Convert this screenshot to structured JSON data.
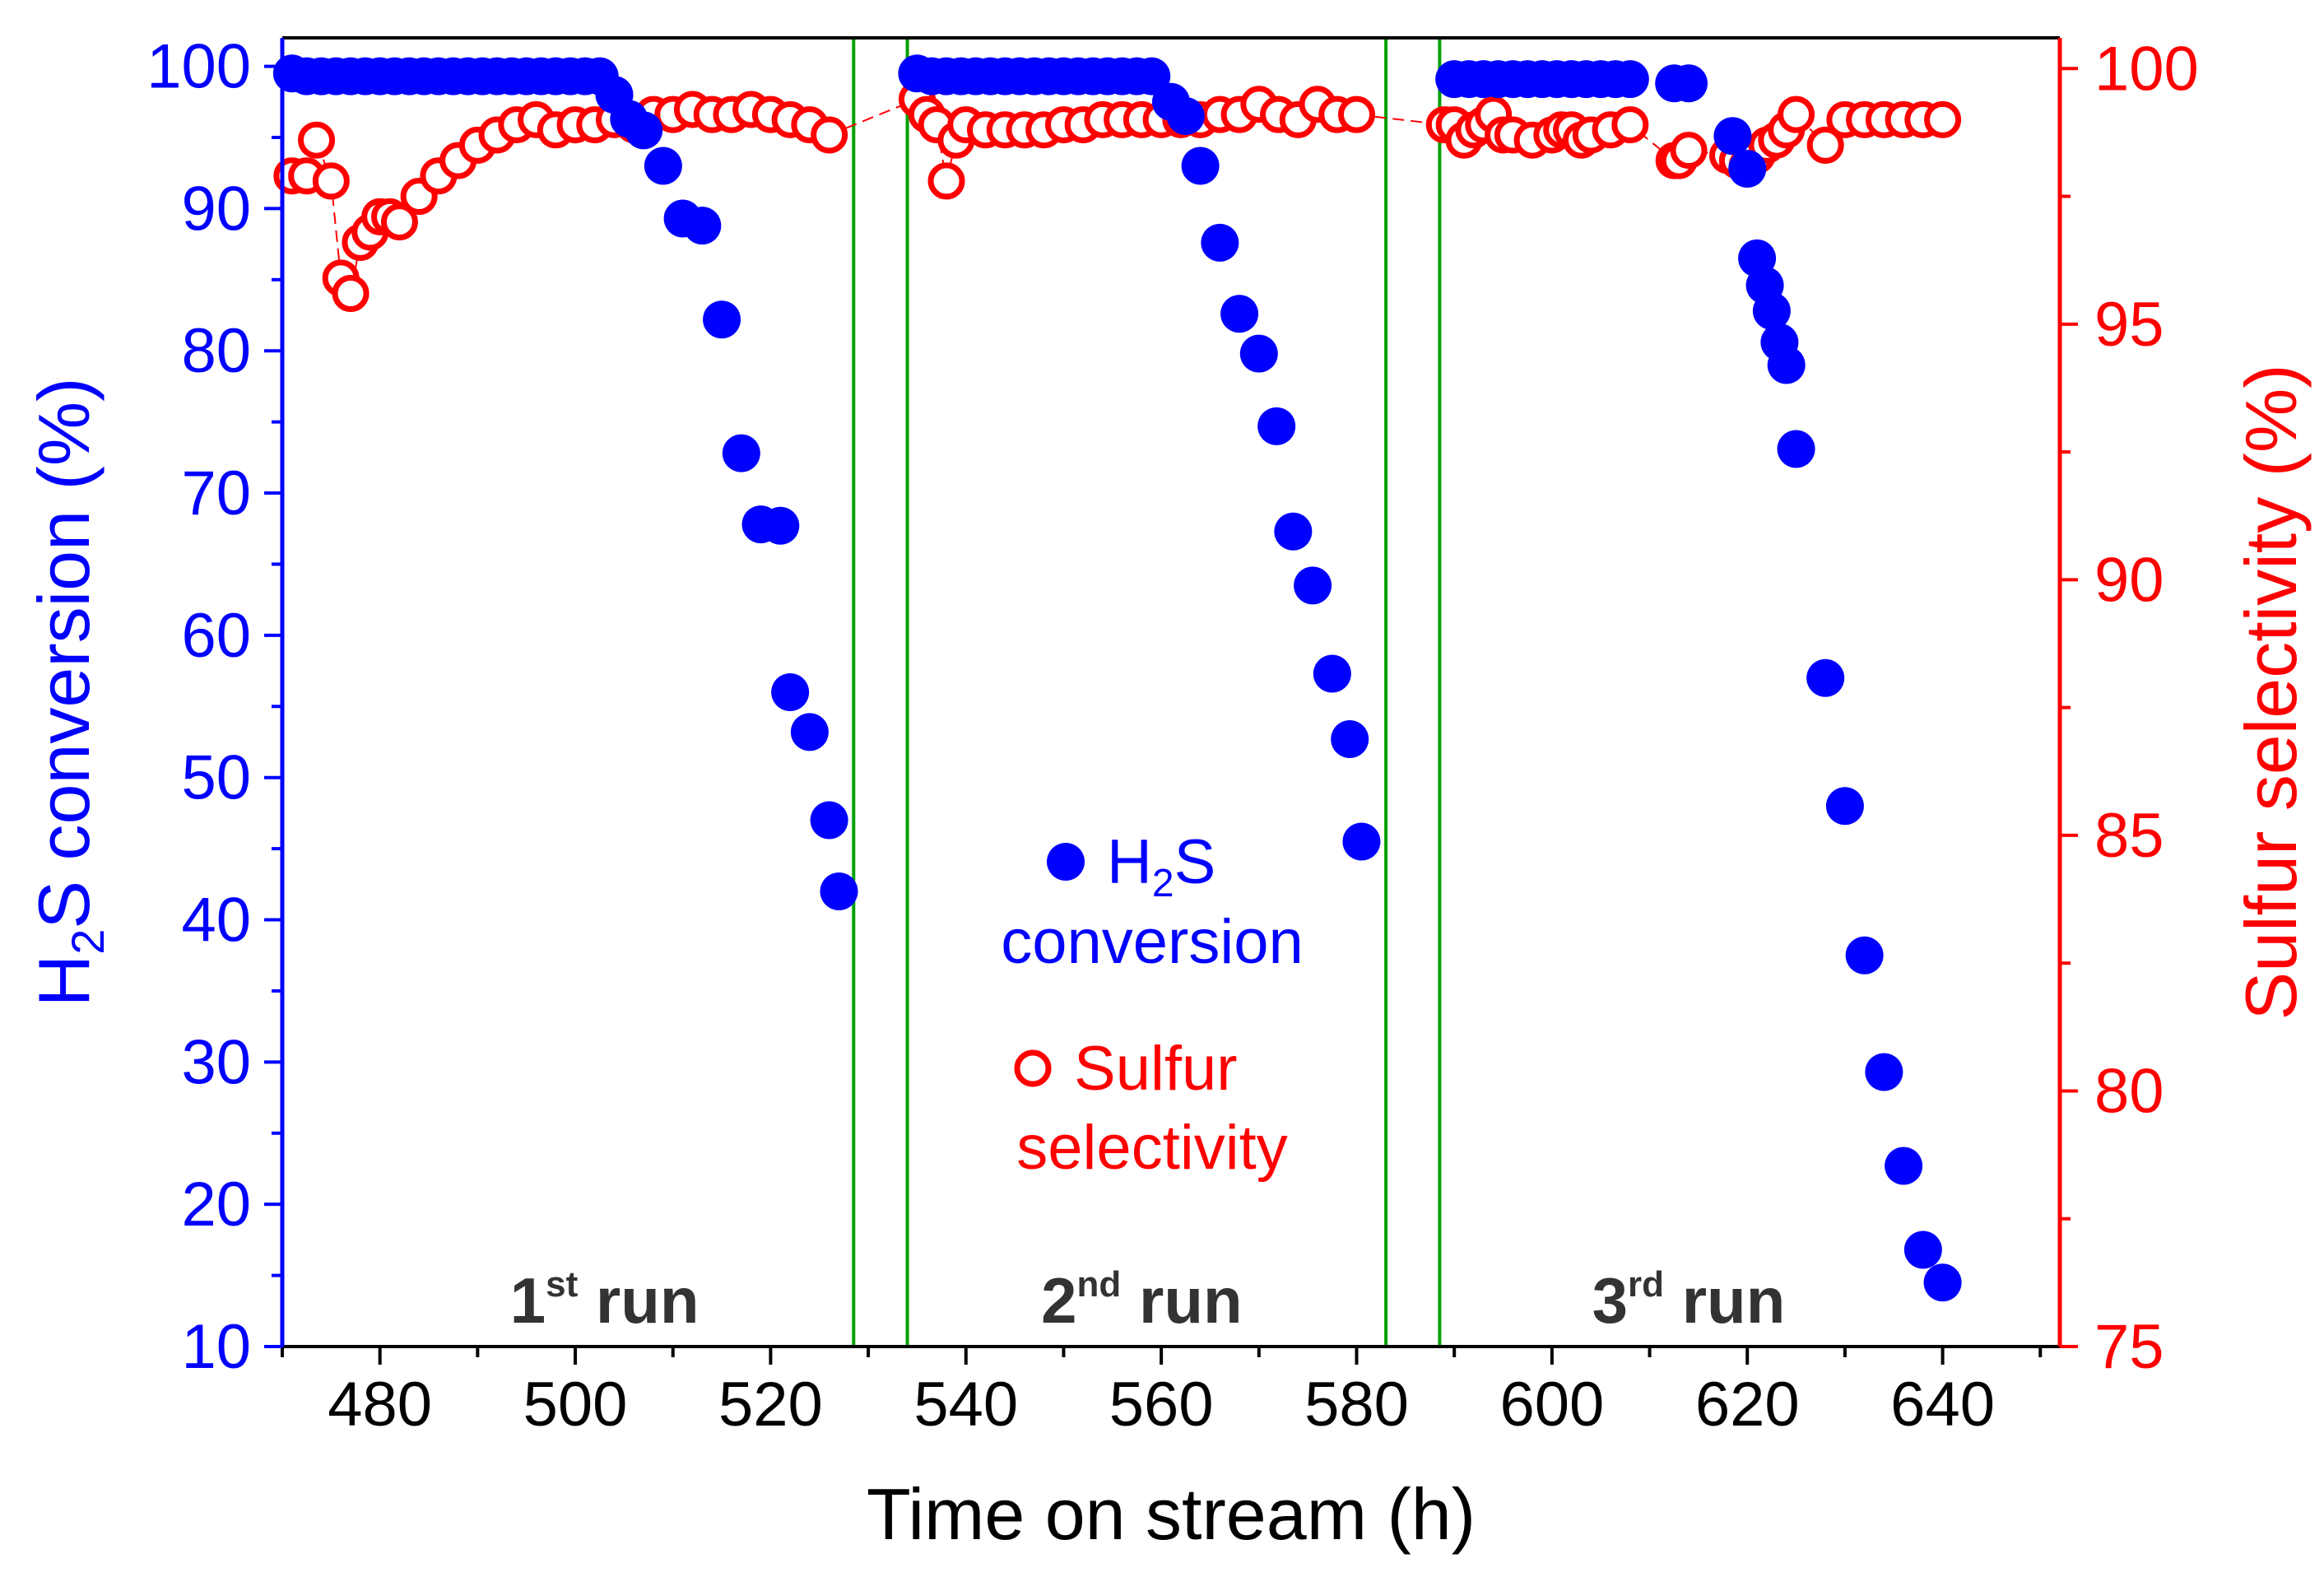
{
  "chart_data": {
    "type": "scatter",
    "xlabel": "Time on stream (h)",
    "ylabel_left": {
      "main": "H",
      "sub": "2",
      "rest": "S conversion (%)"
    },
    "ylabel_right": "Sulfur selectivity (%)",
    "xlim": [
      470,
      652
    ],
    "xticks": [
      480,
      500,
      520,
      540,
      560,
      580,
      600,
      620,
      640
    ],
    "ylim_left": [
      10,
      102
    ],
    "yticks_left": [
      10,
      20,
      30,
      40,
      50,
      60,
      70,
      80,
      90,
      100
    ],
    "ylim_right": [
      75,
      100.6
    ],
    "yticks_right": [
      75,
      80,
      85,
      90,
      95,
      100
    ],
    "grid": false,
    "colors": {
      "conversion": "#0000ff",
      "selectivity": "#ff0000",
      "run_divider": "#00a000"
    },
    "run_dividers_x": [
      528.5,
      534,
      583,
      588.5
    ],
    "run_labels": [
      {
        "num": "1",
        "sup": "st",
        "word": "run",
        "x": 503
      },
      {
        "num": "2",
        "sup": "nd",
        "word": "run",
        "x": 558
      },
      {
        "num": "3",
        "sup": "rd",
        "word": "run",
        "x": 614
      }
    ],
    "legend": {
      "placement": "center",
      "conversion": {
        "pre": "H",
        "sub": "2",
        "post": "S",
        "line2": "conversion"
      },
      "selectivity": {
        "line1": "Sulfur",
        "line2": "selectivity"
      }
    },
    "series": [
      {
        "name": "H2S conversion",
        "axis": "left",
        "marker": "filled-circle",
        "points": [
          [
            471,
            99.5
          ],
          [
            472.5,
            99.3
          ],
          [
            474,
            99.3
          ],
          [
            475.5,
            99.3
          ],
          [
            477,
            99.3
          ],
          [
            478.5,
            99.3
          ],
          [
            480,
            99.3
          ],
          [
            481.5,
            99.3
          ],
          [
            483,
            99.3
          ],
          [
            484.5,
            99.3
          ],
          [
            486,
            99.3
          ],
          [
            487.5,
            99.3
          ],
          [
            489,
            99.3
          ],
          [
            490.5,
            99.3
          ],
          [
            492,
            99.3
          ],
          [
            493.5,
            99.3
          ],
          [
            495,
            99.3
          ],
          [
            496.5,
            99.3
          ],
          [
            498,
            99.3
          ],
          [
            499.5,
            99.3
          ],
          [
            501,
            99.3
          ],
          [
            502.5,
            99.3
          ],
          [
            504,
            98
          ],
          [
            505.5,
            96.3
          ],
          [
            507,
            95.5
          ],
          [
            509,
            93
          ],
          [
            511,
            89.3
          ],
          [
            513,
            88.8
          ],
          [
            515,
            82.2
          ],
          [
            517,
            72.8
          ],
          [
            519,
            67.8
          ],
          [
            521,
            67.7
          ],
          [
            522,
            56
          ],
          [
            524,
            53.2
          ],
          [
            526,
            47
          ],
          [
            527,
            42
          ],
          [
            535,
            99.5
          ],
          [
            536.5,
            99.3
          ],
          [
            538,
            99.3
          ],
          [
            539.5,
            99.3
          ],
          [
            541,
            99.3
          ],
          [
            542.5,
            99.3
          ],
          [
            544,
            99.3
          ],
          [
            545.5,
            99.3
          ],
          [
            547,
            99.3
          ],
          [
            548.5,
            99.3
          ],
          [
            550,
            99.3
          ],
          [
            551.5,
            99.3
          ],
          [
            553,
            99.3
          ],
          [
            554.5,
            99.3
          ],
          [
            556,
            99.3
          ],
          [
            557.5,
            99.3
          ],
          [
            559,
            99.3
          ],
          [
            561,
            97.5
          ],
          [
            562.5,
            96.5
          ],
          [
            564,
            93
          ],
          [
            566,
            87.6
          ],
          [
            568,
            82.6
          ],
          [
            570,
            79.8
          ],
          [
            571.8,
            74.7
          ],
          [
            573.5,
            67.3
          ],
          [
            575.5,
            63.5
          ],
          [
            577.5,
            57.3
          ],
          [
            579.3,
            52.7
          ],
          [
            580.5,
            45.5
          ],
          [
            590,
            99.1
          ],
          [
            591.5,
            99.1
          ],
          [
            593,
            99.1
          ],
          [
            594.5,
            99.1
          ],
          [
            596,
            99.1
          ],
          [
            597.5,
            99.1
          ],
          [
            599,
            99.1
          ],
          [
            600.5,
            99.1
          ],
          [
            602,
            99.1
          ],
          [
            603.5,
            99.1
          ],
          [
            605,
            99.1
          ],
          [
            606.5,
            99.1
          ],
          [
            608,
            99.1
          ],
          [
            612.5,
            98.8
          ],
          [
            614,
            98.8
          ],
          [
            618.5,
            95.1
          ],
          [
            620,
            92.8
          ],
          [
            621,
            86.5
          ],
          [
            621.8,
            84.6
          ],
          [
            622.5,
            82.8
          ],
          [
            623.3,
            80.6
          ],
          [
            624,
            79
          ],
          [
            625,
            73.1
          ],
          [
            628,
            57
          ],
          [
            630,
            48
          ],
          [
            632,
            37.5
          ],
          [
            634,
            29.3
          ],
          [
            636,
            22.7
          ],
          [
            638,
            16.8
          ],
          [
            640,
            14.5
          ]
        ]
      },
      {
        "name": "Sulfur selectivity",
        "axis": "right",
        "marker": "open-circle",
        "points": [
          [
            471,
            97.9
          ],
          [
            472.5,
            97.9
          ],
          [
            473.5,
            98.6
          ],
          [
            475,
            97.8
          ],
          [
            476,
            95.9
          ],
          [
            477,
            95.6
          ],
          [
            478,
            96.6
          ],
          [
            479,
            96.8
          ],
          [
            480,
            97.1
          ],
          [
            481,
            97.1
          ],
          [
            482,
            97
          ],
          [
            484,
            97.5
          ],
          [
            486,
            97.9
          ],
          [
            488,
            98.2
          ],
          [
            490,
            98.5
          ],
          [
            492,
            98.7
          ],
          [
            494,
            98.9
          ],
          [
            496,
            99
          ],
          [
            498,
            98.8
          ],
          [
            500,
            98.9
          ],
          [
            502,
            98.9
          ],
          [
            504,
            99
          ],
          [
            506,
            98.9
          ],
          [
            508,
            99.1
          ],
          [
            510,
            99.1
          ],
          [
            512,
            99.2
          ],
          [
            514,
            99.1
          ],
          [
            516,
            99.1
          ],
          [
            518,
            99.2
          ],
          [
            520,
            99.1
          ],
          [
            522,
            99
          ],
          [
            524,
            98.9
          ],
          [
            526,
            98.7
          ],
          [
            535,
            99.4
          ],
          [
            536,
            99.1
          ],
          [
            537,
            98.9
          ],
          [
            538,
            97.8
          ],
          [
            539,
            98.6
          ],
          [
            540,
            98.9
          ],
          [
            542,
            98.8
          ],
          [
            544,
            98.8
          ],
          [
            546,
            98.8
          ],
          [
            548,
            98.8
          ],
          [
            550,
            98.9
          ],
          [
            552,
            98.9
          ],
          [
            554,
            99
          ],
          [
            556,
            99
          ],
          [
            558,
            99
          ],
          [
            560,
            99
          ],
          [
            562,
            99
          ],
          [
            564,
            99
          ],
          [
            566,
            99.1
          ],
          [
            568,
            99.1
          ],
          [
            570,
            99.3
          ],
          [
            572,
            99.1
          ],
          [
            574,
            99
          ],
          [
            576,
            99.3
          ],
          [
            578,
            99.1
          ],
          [
            580,
            99.1
          ],
          [
            589,
            98.9
          ],
          [
            590,
            98.9
          ],
          [
            591,
            98.6
          ],
          [
            592,
            98.8
          ],
          [
            593,
            98.9
          ],
          [
            594,
            99.1
          ],
          [
            595,
            98.7
          ],
          [
            596,
            98.7
          ],
          [
            598,
            98.6
          ],
          [
            600,
            98.7
          ],
          [
            601,
            98.8
          ],
          [
            602,
            98.8
          ],
          [
            603,
            98.6
          ],
          [
            604,
            98.7
          ],
          [
            606,
            98.8
          ],
          [
            608,
            98.9
          ],
          [
            612.5,
            98.2
          ],
          [
            613,
            98.2
          ],
          [
            614,
            98.4
          ],
          [
            618,
            98.3
          ],
          [
            619,
            98.2
          ],
          [
            620,
            98.1
          ],
          [
            621,
            98.3
          ],
          [
            622,
            98.5
          ],
          [
            623,
            98.6
          ],
          [
            624,
            98.8
          ],
          [
            625,
            99.1
          ],
          [
            628,
            98.5
          ],
          [
            630,
            99
          ],
          [
            632,
            99
          ],
          [
            634,
            99
          ],
          [
            636,
            99
          ],
          [
            638,
            99
          ],
          [
            640,
            99
          ]
        ]
      }
    ]
  }
}
